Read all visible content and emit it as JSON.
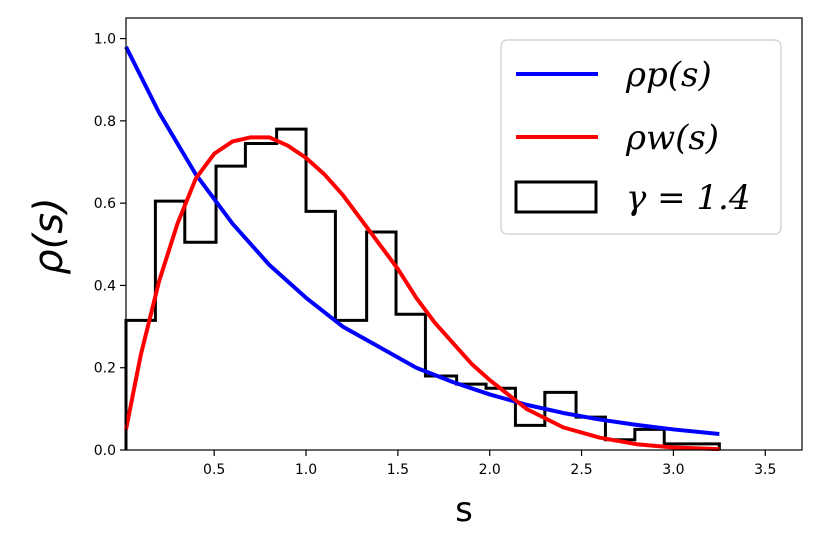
{
  "chart_data": {
    "type": "line",
    "xlabel": "s",
    "ylabel": "ρ(s)",
    "xlim": [
      0.02,
      3.7
    ],
    "ylim": [
      0.0,
      1.05
    ],
    "xticks": [
      "0.5",
      "1.0",
      "1.5",
      "2.0",
      "2.5",
      "3.0",
      "3.5"
    ],
    "yticks": [
      "0.0",
      "0.2",
      "0.4",
      "0.6",
      "0.8",
      "1.0"
    ],
    "grid": false,
    "legend_position": "top-right",
    "series": [
      {
        "name": "ρp(s)",
        "kind": "line",
        "color": "#0000ff",
        "x": [
          0.02,
          0.2,
          0.4,
          0.6,
          0.8,
          1.0,
          1.2,
          1.4,
          1.6,
          1.8,
          2.0,
          2.2,
          2.4,
          2.6,
          2.8,
          3.0,
          3.25
        ],
        "y": [
          0.98,
          0.82,
          0.67,
          0.55,
          0.45,
          0.37,
          0.3,
          0.25,
          0.2,
          0.165,
          0.135,
          0.11,
          0.09,
          0.074,
          0.061,
          0.05,
          0.039
        ]
      },
      {
        "name": "ρw(s)",
        "kind": "line",
        "color": "#ff0000",
        "x": [
          0.02,
          0.1,
          0.2,
          0.3,
          0.4,
          0.5,
          0.6,
          0.7,
          0.8,
          0.9,
          1.0,
          1.1,
          1.2,
          1.3,
          1.4,
          1.5,
          1.6,
          1.7,
          1.8,
          1.9,
          2.0,
          2.2,
          2.4,
          2.6,
          2.8,
          3.0,
          3.25
        ],
        "y": [
          0.05,
          0.23,
          0.41,
          0.55,
          0.66,
          0.72,
          0.75,
          0.76,
          0.76,
          0.74,
          0.71,
          0.67,
          0.62,
          0.56,
          0.5,
          0.44,
          0.37,
          0.31,
          0.26,
          0.21,
          0.17,
          0.1,
          0.055,
          0.03,
          0.014,
          0.006,
          0.002
        ]
      },
      {
        "name": "γ = 1.4",
        "kind": "histogram",
        "color": "#000000",
        "bin_edges": [
          0.02,
          0.18,
          0.34,
          0.51,
          0.67,
          0.84,
          1.0,
          1.16,
          1.33,
          1.49,
          1.65,
          1.82,
          1.98,
          2.14,
          2.3,
          2.47,
          2.63,
          2.79,
          2.95,
          3.12,
          3.25
        ],
        "values": [
          0.315,
          0.605,
          0.505,
          0.69,
          0.745,
          0.78,
          0.58,
          0.315,
          0.53,
          0.33,
          0.18,
          0.16,
          0.15,
          0.06,
          0.14,
          0.08,
          0.025,
          0.05,
          0.015,
          0.015
        ]
      }
    ]
  }
}
